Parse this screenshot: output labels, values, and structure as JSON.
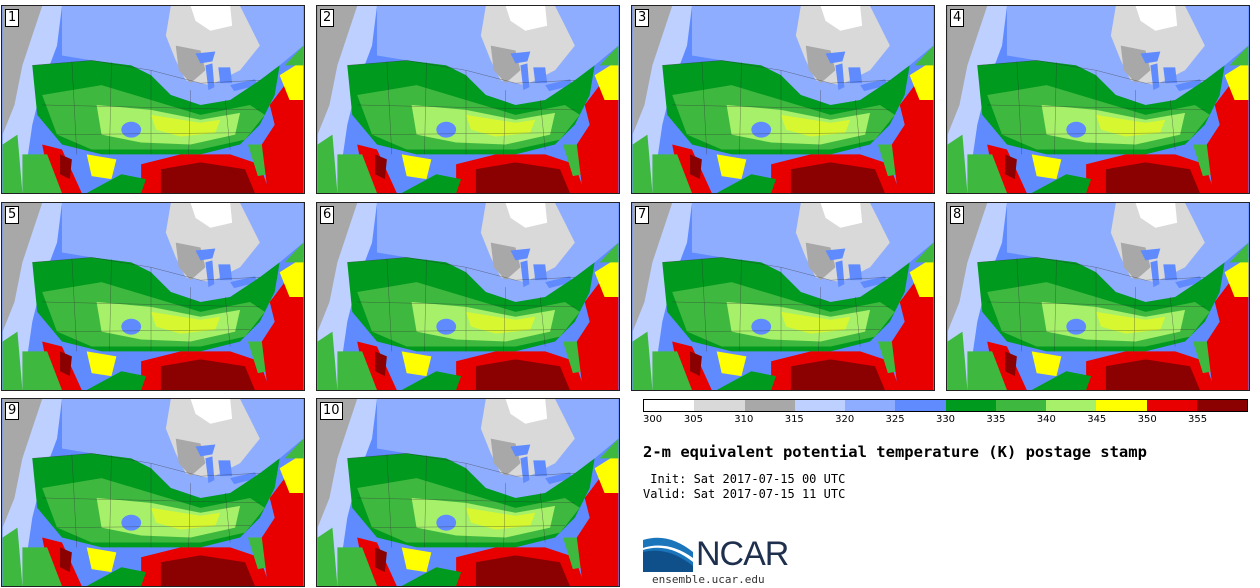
{
  "panels": [
    {
      "label": "1"
    },
    {
      "label": "2"
    },
    {
      "label": "3"
    },
    {
      "label": "4"
    },
    {
      "label": "5"
    },
    {
      "label": "6"
    },
    {
      "label": "7"
    },
    {
      "label": "8"
    },
    {
      "label": "9"
    },
    {
      "label": "10"
    }
  ],
  "colorbar": {
    "ticks": [
      "300",
      "305",
      "310",
      "315",
      "320",
      "325",
      "330",
      "335",
      "340",
      "345",
      "350",
      "355"
    ],
    "colors": [
      "#ffffff",
      "#d9d9d9",
      "#a8a8a8",
      "#bdd0ff",
      "#8fadff",
      "#5f8bff",
      "#009a1e",
      "#3fb83f",
      "#a6f06a",
      "#ffff00",
      "#e80000",
      "#8b0000"
    ]
  },
  "title": "2-m equivalent potential temperature (K) postage stamp",
  "init": " Init: Sat 2017-07-15 00 UTC",
  "valid": "Valid: Sat 2017-07-15 11 UTC",
  "logo": {
    "name": "NCAR",
    "url": "ensemble.ucar.edu"
  }
}
